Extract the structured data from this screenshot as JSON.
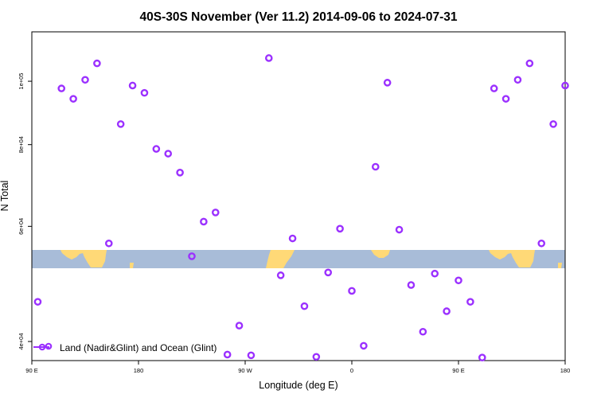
{
  "chart_data": {
    "type": "scatter",
    "title": "40S-30S November (Ver 11.2)   2014-09-06 to 2024-07-31",
    "xlabel": "Longitude (deg E)",
    "ylabel": "N Total",
    "x_axis": {
      "ticks": [
        {
          "value": 90,
          "label": "90 E"
        },
        {
          "value": 180,
          "label": "180"
        },
        {
          "value": 270,
          "label": "90 W"
        },
        {
          "value": 360,
          "label": "0"
        },
        {
          "value": 450,
          "label": "90 E"
        },
        {
          "value": 540,
          "label": "180"
        }
      ],
      "range": [
        90,
        540
      ]
    },
    "y_axis": {
      "scale": "log",
      "ticks": [
        {
          "value": 40000,
          "label": "4e+04"
        },
        {
          "value": 60000,
          "label": "6e+04"
        },
        {
          "value": 80000,
          "label": "8e+04"
        },
        {
          "value": 100000,
          "label": "1e+05"
        }
      ],
      "range": [
        37400,
        119000
      ]
    },
    "legend": {
      "position": "bottom-left",
      "label": "Land (Nadir&Glint) and Ocean (Glint)"
    },
    "series": [
      {
        "name": "Land (Nadir&Glint) and Ocean (Glint)",
        "color": "#9b30ff",
        "marker": "open-circle",
        "points": [
          [
            95,
            46000
          ],
          [
            115,
            97500
          ],
          [
            125,
            94000
          ],
          [
            135,
            100500
          ],
          [
            145,
            106500
          ],
          [
            155,
            56500
          ],
          [
            165,
            86000
          ],
          [
            175,
            98500
          ],
          [
            185,
            96000
          ],
          [
            195,
            78800
          ],
          [
            205,
            77500
          ],
          [
            215,
            72500
          ],
          [
            225,
            54000
          ],
          [
            235,
            61000
          ],
          [
            245,
            63000
          ],
          [
            255,
            38200
          ],
          [
            265,
            42300
          ],
          [
            275,
            38100
          ],
          [
            290,
            108500
          ],
          [
            300,
            50500
          ],
          [
            310,
            57500
          ],
          [
            320,
            45300
          ],
          [
            330,
            37900
          ],
          [
            340,
            51000
          ],
          [
            350,
            59500
          ],
          [
            360,
            47800
          ],
          [
            370,
            39400
          ],
          [
            380,
            74000
          ],
          [
            390,
            99500
          ],
          [
            400,
            59300
          ],
          [
            410,
            48800
          ],
          [
            420,
            41400
          ],
          [
            430,
            50800
          ],
          [
            440,
            44500
          ],
          [
            450,
            49600
          ],
          [
            460,
            46000
          ],
          [
            470,
            37800
          ],
          [
            480,
            97500
          ],
          [
            490,
            94000
          ],
          [
            500,
            100500
          ],
          [
            510,
            106500
          ],
          [
            520,
            56500
          ],
          [
            530,
            86000
          ],
          [
            540,
            98500
          ]
        ]
      }
    ],
    "map_strip": {
      "description_colors": {
        "ocean": "#a8bcd8",
        "land": "#ffd977"
      },
      "lat_range": "40S-30S"
    }
  }
}
